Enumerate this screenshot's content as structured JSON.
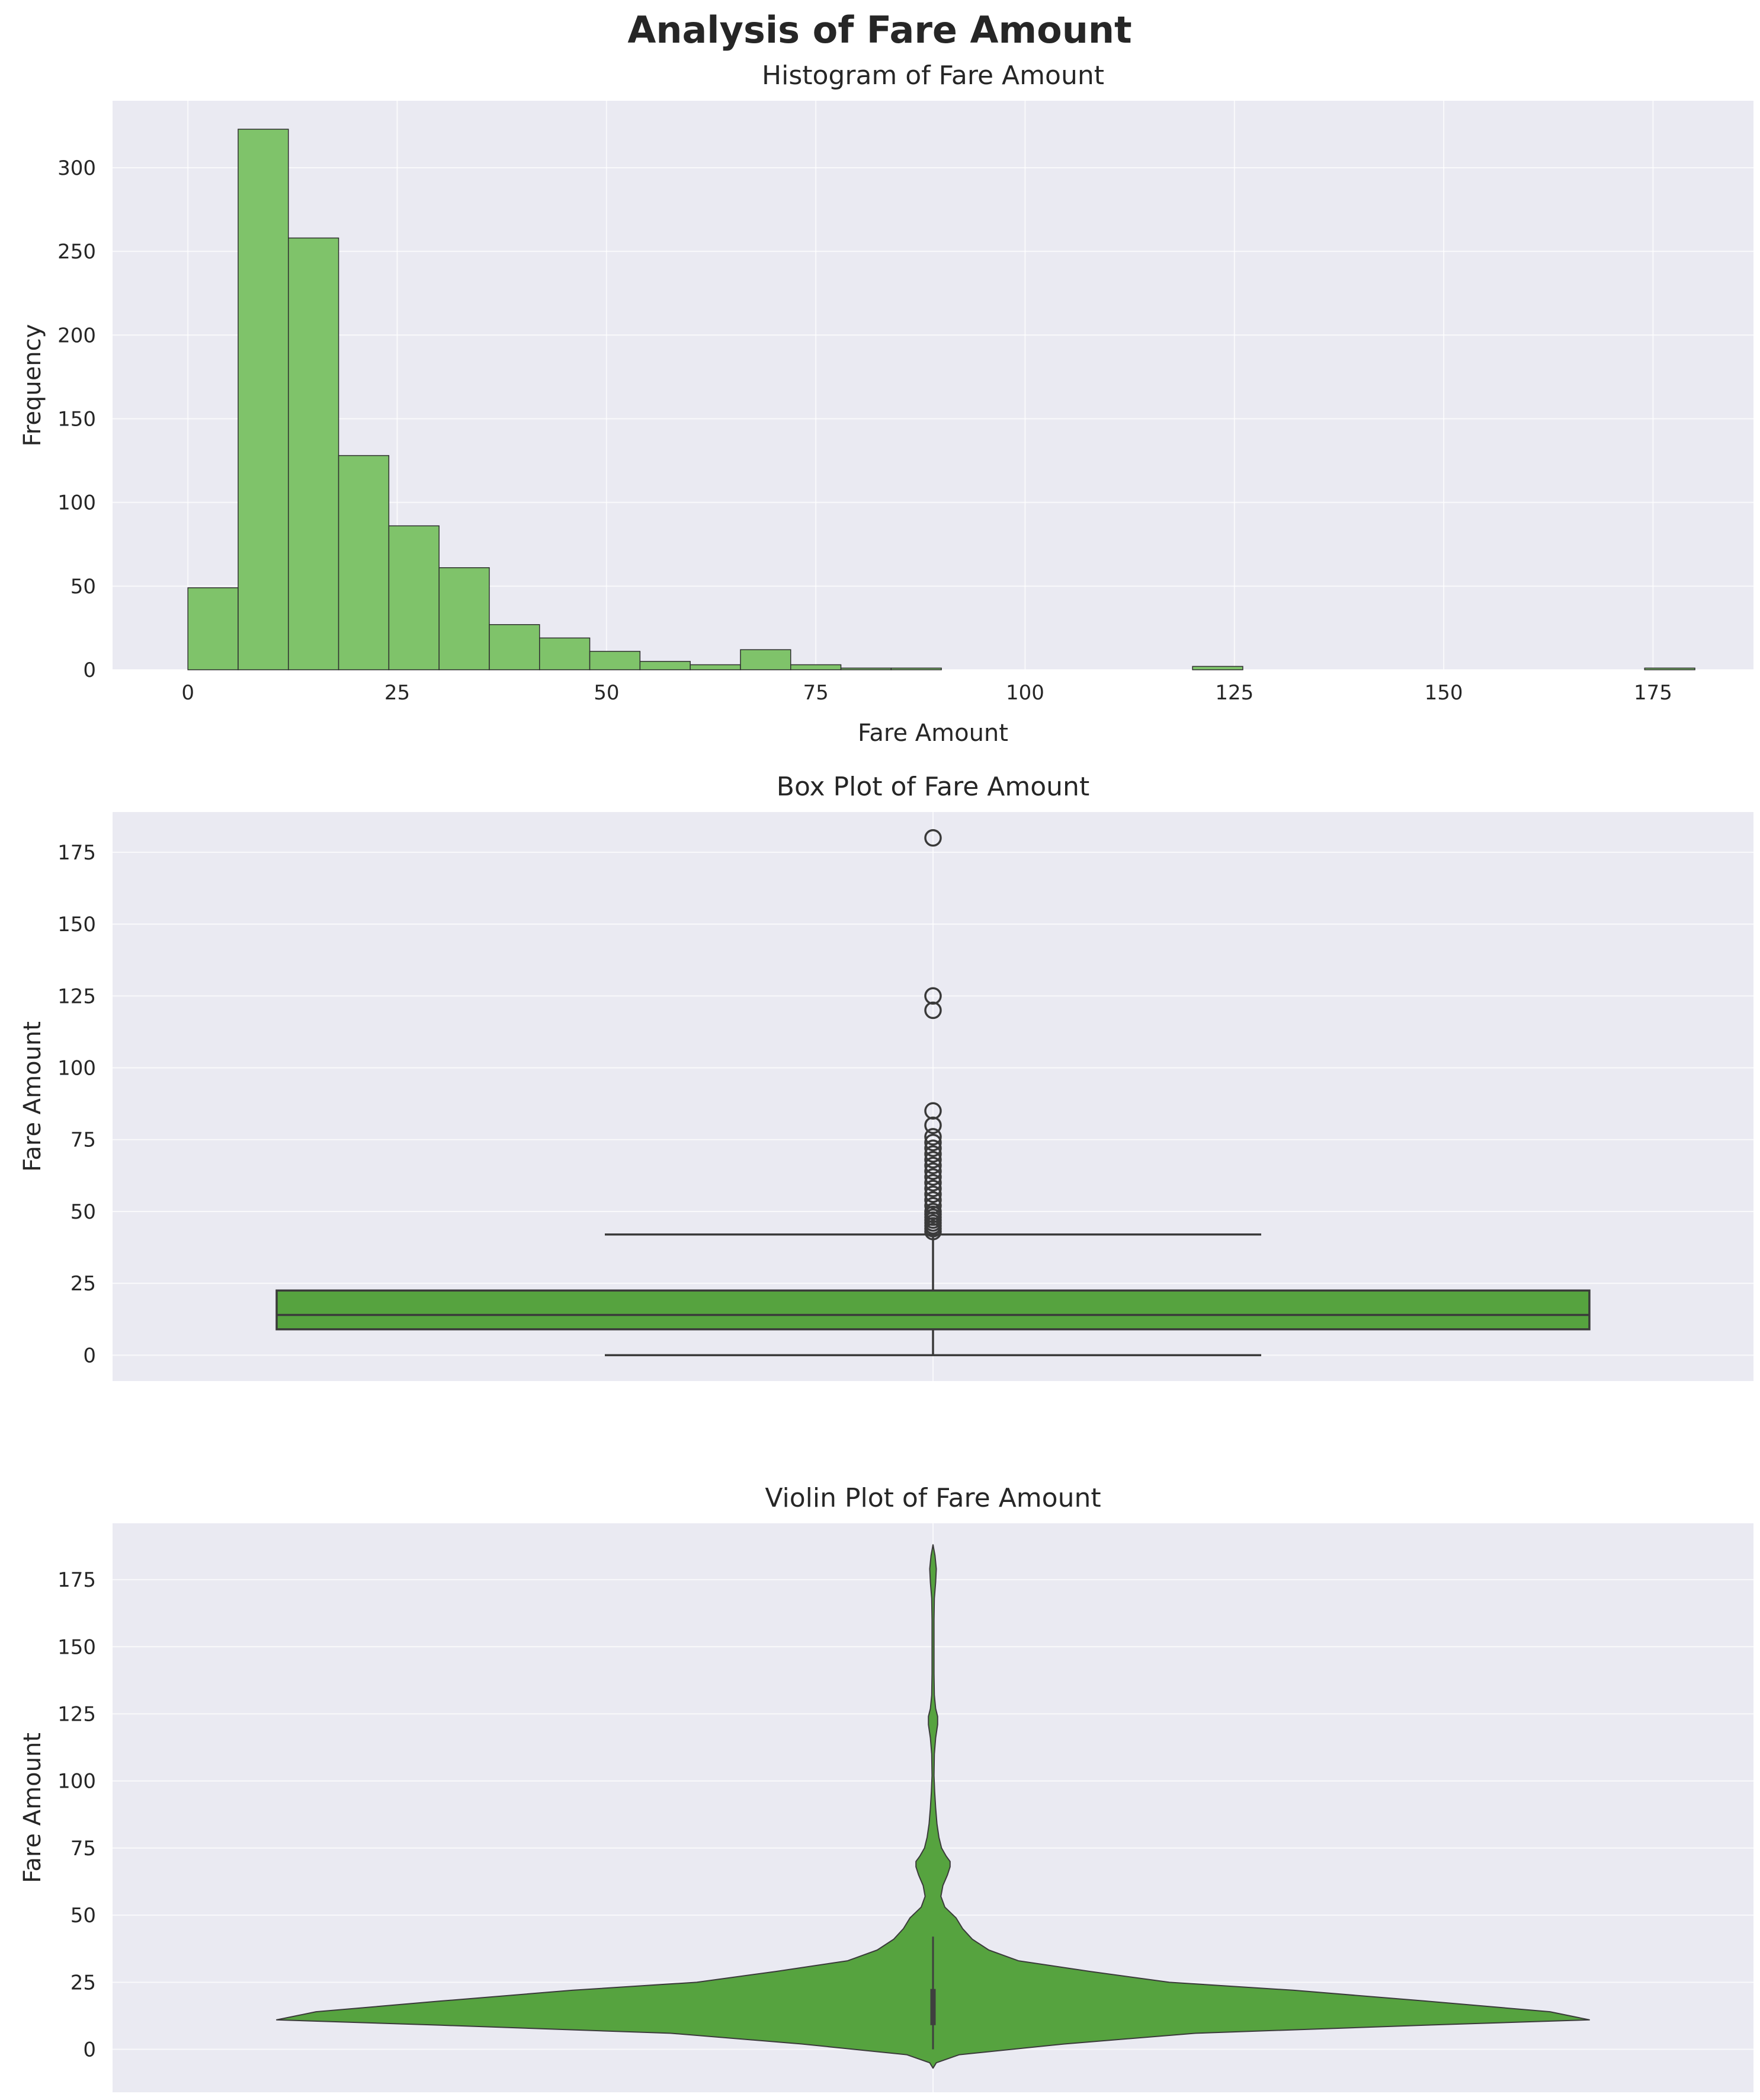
{
  "figure": {
    "title": "Analysis of Fare Amount",
    "colors": {
      "background": "#eaeaf2",
      "grid": "#ffffff",
      "hist_fill": "#7fc36a",
      "box_fill": "#56a33f",
      "edge": "#3a3a3a"
    }
  },
  "chart_data": [
    {
      "type": "bar",
      "subtype": "histogram",
      "title": "Histogram of Fare Amount",
      "xlabel": "Fare Amount",
      "ylabel": "Frequency",
      "xlim": [
        -9,
        187
      ],
      "ylim": [
        0,
        340
      ],
      "xticks": [
        0,
        25,
        50,
        75,
        100,
        125,
        150,
        175
      ],
      "yticks": [
        0,
        50,
        100,
        150,
        200,
        250,
        300
      ],
      "bin_edges": [
        0,
        6,
        12,
        18,
        24,
        30,
        36,
        42,
        48,
        54,
        60,
        66,
        72,
        78,
        84,
        90,
        96,
        102,
        108,
        114,
        120,
        126,
        132,
        138,
        144,
        150,
        156,
        162,
        168,
        174,
        180
      ],
      "values": [
        49,
        323,
        258,
        128,
        86,
        61,
        27,
        19,
        11,
        5,
        3,
        12,
        3,
        1,
        1,
        0,
        0,
        0,
        0,
        0,
        2,
        0,
        0,
        0,
        0,
        0,
        0,
        0,
        0,
        1
      ],
      "grid": true
    },
    {
      "type": "box",
      "title": "Box Plot of Fare Amount",
      "ylabel": "Fare Amount",
      "ylim": [
        -9,
        189
      ],
      "yticks": [
        0,
        25,
        50,
        75,
        100,
        125,
        150,
        175
      ],
      "stats": {
        "whisker_low": 0,
        "q1": 9,
        "median": 14,
        "q3": 22.5,
        "whisker_high": 42
      },
      "outliers": [
        43,
        44,
        45,
        46,
        47,
        48,
        49,
        50,
        52,
        54,
        56,
        58,
        60,
        62,
        64,
        66,
        68,
        70,
        72,
        74,
        76,
        80,
        85,
        120,
        125,
        180
      ],
      "grid": true
    },
    {
      "type": "violin",
      "title": "Violin Plot of Fare Amount",
      "ylabel": "Fare Amount",
      "ylim": [
        -16,
        196
      ],
      "yticks": [
        0,
        25,
        50,
        75,
        100,
        125,
        150,
        175
      ],
      "stats": {
        "min": 0,
        "q1": 9,
        "median": 14,
        "q3": 22.5,
        "max": 42
      },
      "density_y": [
        -7,
        -5,
        -2,
        2,
        6,
        9,
        11,
        14,
        18,
        22,
        25,
        29,
        33,
        37,
        41,
        45,
        49,
        53,
        57,
        61,
        65,
        68,
        70,
        72,
        75,
        79,
        84,
        90,
        96,
        102,
        110,
        116,
        121,
        124,
        127,
        132,
        140,
        150,
        160,
        168,
        174,
        179,
        184,
        188
      ],
      "density_width": [
        0.0,
        0.005,
        0.04,
        0.2,
        0.4,
        0.75,
        1.0,
        0.94,
        0.75,
        0.55,
        0.36,
        0.24,
        0.13,
        0.085,
        0.06,
        0.045,
        0.035,
        0.018,
        0.012,
        0.015,
        0.022,
        0.026,
        0.026,
        0.02,
        0.013,
        0.009,
        0.006,
        0.004,
        0.0025,
        0.0015,
        0.002,
        0.004,
        0.007,
        0.007,
        0.004,
        0.002,
        0.0015,
        0.0015,
        0.0015,
        0.002,
        0.004,
        0.005,
        0.003,
        0.0
      ],
      "grid": true
    }
  ]
}
